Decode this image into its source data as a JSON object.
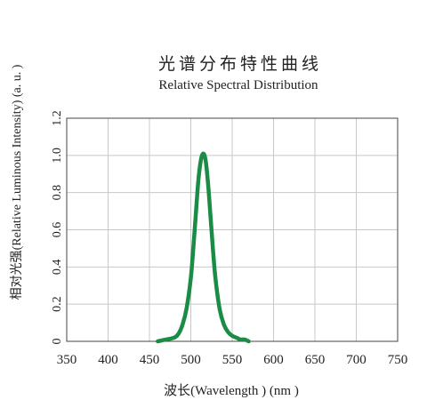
{
  "chart_data": {
    "type": "line",
    "title": "光谱分布特性曲线",
    "subtitle": "Relative Spectral Distribution",
    "xlabel": "波长(Wavelength ) (nm )",
    "ylabel": "相对光强(Relative Luminous Intensity) (a. u. )",
    "xlim": [
      350,
      750
    ],
    "ylim": [
      0,
      1.2
    ],
    "x_ticks": [
      350,
      400,
      450,
      500,
      550,
      600,
      650,
      700,
      750
    ],
    "x_tick_labels": [
      "350",
      "400",
      "450",
      "500",
      "550",
      "600",
      "650",
      "700",
      "750"
    ],
    "y_ticks": [
      0,
      0.2,
      0.4,
      0.6,
      0.8,
      1.0,
      1.2
    ],
    "y_tick_labels": [
      "0",
      "0.2",
      "0.4",
      "0.6",
      "0.8",
      "1.0",
      "1.2"
    ],
    "grid": true,
    "series": [
      {
        "color": "#1a8c45",
        "x": [
          460,
          470,
          480,
          485,
          490,
          495,
          500,
          503,
          506,
          509,
          512,
          515,
          518,
          521,
          524,
          527,
          530,
          535,
          540,
          545,
          550,
          555,
          560,
          565,
          570
        ],
        "y": [
          0.0,
          0.01,
          0.02,
          0.04,
          0.09,
          0.18,
          0.34,
          0.5,
          0.68,
          0.86,
          0.97,
          1.01,
          0.97,
          0.84,
          0.66,
          0.48,
          0.33,
          0.17,
          0.09,
          0.05,
          0.03,
          0.02,
          0.01,
          0.01,
          0.0
        ]
      }
    ]
  }
}
